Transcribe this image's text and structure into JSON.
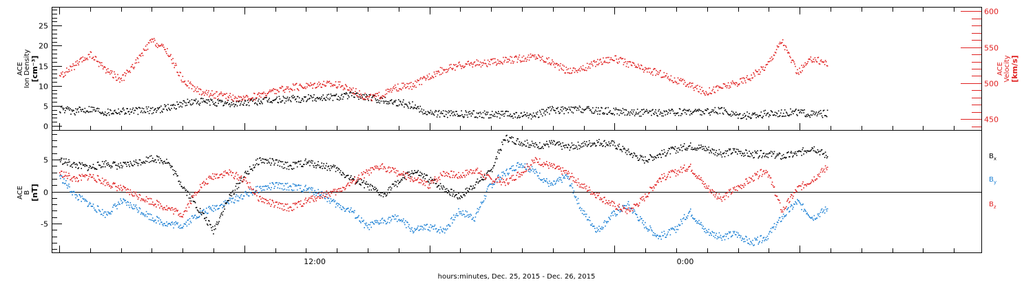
{
  "colors": {
    "black": "#000000",
    "red": "#e02020",
    "blue": "#1a7fd4"
  },
  "chart_data": [
    {
      "type": "scatter",
      "panel": "top",
      "left_axis": {
        "label_lines": [
          "ACE",
          "Ion Density",
          "[cm⁻³]"
        ],
        "ticks": [
          0,
          5,
          10,
          15,
          20,
          25
        ],
        "ylim": [
          -1,
          29.5
        ]
      },
      "right_axis": {
        "label_lines": [
          "ACE",
          "Velocity",
          "[km/s]"
        ],
        "ticks": [
          450,
          500,
          550,
          600
        ],
        "ylim": [
          435,
          605
        ],
        "color": "red"
      },
      "series": [
        {
          "color": "black",
          "axis": "left",
          "points": [
            [
              0,
              4.2
            ],
            [
              1,
              3.8
            ],
            [
              2,
              4.5
            ],
            [
              3,
              3.6
            ],
            [
              4,
              4.0
            ],
            [
              5,
              3.9
            ],
            [
              6,
              4.1
            ],
            [
              7,
              4.6
            ],
            [
              8,
              5.8
            ],
            [
              9,
              6.2
            ],
            [
              10,
              6.0
            ],
            [
              11,
              5.6
            ],
            [
              12,
              5.9
            ],
            [
              13,
              6.3
            ],
            [
              14,
              6.6
            ],
            [
              15,
              6.8
            ],
            [
              16,
              7.0
            ],
            [
              17,
              7.2
            ],
            [
              18,
              7.4
            ],
            [
              19,
              7.8
            ],
            [
              20,
              7.3
            ],
            [
              21,
              6.6
            ],
            [
              22,
              6.0
            ],
            [
              23,
              5.2
            ],
            [
              24,
              3.4
            ],
            [
              25,
              3.2
            ],
            [
              26,
              3.0
            ],
            [
              27,
              3.1
            ],
            [
              28,
              2.9
            ],
            [
              29,
              3.0
            ],
            [
              30,
              2.6
            ],
            [
              31,
              2.9
            ],
            [
              32,
              4.2
            ],
            [
              33,
              4.0
            ],
            [
              34,
              4.3
            ],
            [
              35,
              3.9
            ],
            [
              36,
              3.8
            ],
            [
              37,
              3.6
            ],
            [
              38,
              3.4
            ],
            [
              39,
              3.3
            ],
            [
              40,
              3.5
            ],
            [
              41,
              3.8
            ],
            [
              42,
              3.6
            ],
            [
              43,
              3.9
            ],
            [
              44,
              3.0
            ],
            [
              45,
              2.6
            ],
            [
              46,
              3.2
            ],
            [
              47,
              3.4
            ],
            [
              48,
              3.6
            ],
            [
              49,
              3.0
            ],
            [
              50,
              3.2
            ]
          ]
        },
        {
          "color": "red",
          "axis": "right",
          "points": [
            [
              0,
              510
            ],
            [
              1,
              525
            ],
            [
              2,
              540
            ],
            [
              3,
              520
            ],
            [
              4,
              505
            ],
            [
              5,
              530
            ],
            [
              6,
              560
            ],
            [
              7,
              545
            ],
            [
              8,
              505
            ],
            [
              9,
              490
            ],
            [
              10,
              485
            ],
            [
              11,
              482
            ],
            [
              12,
              478
            ],
            [
              13,
              484
            ],
            [
              14,
              490
            ],
            [
              15,
              494
            ],
            [
              16,
              497
            ],
            [
              17,
              500
            ],
            [
              18,
              499
            ],
            [
              19,
              492
            ],
            [
              20,
              480
            ],
            [
              21,
              484
            ],
            [
              22,
              495
            ],
            [
              23,
              497
            ],
            [
              24,
              510
            ],
            [
              25,
              520
            ],
            [
              26,
              525
            ],
            [
              27,
              528
            ],
            [
              28,
              529
            ],
            [
              29,
              532
            ],
            [
              30,
              535
            ],
            [
              31,
              538
            ],
            [
              32,
              530
            ],
            [
              33,
              518
            ],
            [
              34,
              520
            ],
            [
              35,
              530
            ],
            [
              36,
              535
            ],
            [
              37,
              528
            ],
            [
              38,
              520
            ],
            [
              39,
              515
            ],
            [
              40,
              505
            ],
            [
              41,
              498
            ],
            [
              42,
              488
            ],
            [
              43,
              495
            ],
            [
              44,
              500
            ],
            [
              45,
              510
            ],
            [
              46,
              525
            ],
            [
              47,
              560
            ],
            [
              48,
              515
            ],
            [
              49,
              535
            ],
            [
              50,
              528
            ]
          ]
        }
      ]
    },
    {
      "type": "scatter",
      "panel": "bottom",
      "left_axis": {
        "label_lines": [
          "ACE",
          "B",
          "[nT]"
        ],
        "ticks": [
          -5,
          0,
          5
        ],
        "ylim": [
          -9.5,
          9.5
        ],
        "zero_line": true
      },
      "legend": [
        {
          "base": "B",
          "sub": "x",
          "color": "black"
        },
        {
          "base": "B",
          "sub": "y",
          "color": "blue"
        },
        {
          "base": "B",
          "sub": "z",
          "color": "red"
        }
      ],
      "series": [
        {
          "color": "black",
          "points": [
            [
              0,
              5.0
            ],
            [
              1,
              4.2
            ],
            [
              2,
              3.8
            ],
            [
              3,
              4.5
            ],
            [
              4,
              4.0
            ],
            [
              5,
              4.6
            ],
            [
              6,
              5.3
            ],
            [
              7,
              4.8
            ],
            [
              8,
              1.0
            ],
            [
              9,
              -2.5
            ],
            [
              10,
              -6.0
            ],
            [
              11,
              -1.0
            ],
            [
              12,
              2.5
            ],
            [
              13,
              5.0
            ],
            [
              14,
              4.6
            ],
            [
              15,
              4.0
            ],
            [
              16,
              4.6
            ],
            [
              17,
              4.2
            ],
            [
              18,
              3.6
            ],
            [
              19,
              2.0
            ],
            [
              20,
              1.0
            ],
            [
              21,
              -0.5
            ],
            [
              22,
              1.5
            ],
            [
              23,
              3.2
            ],
            [
              24,
              2.0
            ],
            [
              25,
              0.6
            ],
            [
              26,
              -0.8
            ],
            [
              27,
              1.2
            ],
            [
              28,
              3.0
            ],
            [
              29,
              8.5
            ],
            [
              30,
              7.8
            ],
            [
              31,
              7.2
            ],
            [
              32,
              7.6
            ],
            [
              33,
              7.0
            ],
            [
              34,
              7.4
            ],
            [
              35,
              7.8
            ],
            [
              36,
              7.5
            ],
            [
              37,
              6.2
            ],
            [
              38,
              5.0
            ],
            [
              39,
              5.8
            ],
            [
              40,
              6.6
            ],
            [
              41,
              7.2
            ],
            [
              42,
              6.8
            ],
            [
              43,
              6.0
            ],
            [
              44,
              6.4
            ],
            [
              45,
              5.8
            ],
            [
              46,
              6.0
            ],
            [
              47,
              5.5
            ],
            [
              48,
              6.0
            ],
            [
              49,
              7.0
            ],
            [
              50,
              5.5
            ]
          ]
        },
        {
          "color": "blue",
          "points": [
            [
              0,
              2.5
            ],
            [
              1,
              -0.5
            ],
            [
              2,
              -2.0
            ],
            [
              3,
              -3.5
            ],
            [
              4,
              -1.5
            ],
            [
              5,
              -2.5
            ],
            [
              6,
              -4.0
            ],
            [
              7,
              -5.0
            ],
            [
              8,
              -5.2
            ],
            [
              9,
              -3.5
            ],
            [
              10,
              -2.5
            ],
            [
              11,
              -1.5
            ],
            [
              12,
              -0.5
            ],
            [
              13,
              0.5
            ],
            [
              14,
              1.0
            ],
            [
              15,
              0.8
            ],
            [
              16,
              0.5
            ],
            [
              17,
              -0.2
            ],
            [
              18,
              -2.0
            ],
            [
              19,
              -3.0
            ],
            [
              20,
              -5.5
            ],
            [
              21,
              -4.5
            ],
            [
              22,
              -4.0
            ],
            [
              23,
              -6.0
            ],
            [
              24,
              -5.5
            ],
            [
              25,
              -6.0
            ],
            [
              26,
              -3.0
            ],
            [
              27,
              -4.0
            ],
            [
              28,
              1.0
            ],
            [
              29,
              3.0
            ],
            [
              30,
              4.5
            ],
            [
              31,
              3.0
            ],
            [
              32,
              1.0
            ],
            [
              33,
              2.5
            ],
            [
              34,
              -3.0
            ],
            [
              35,
              -6.0
            ],
            [
              36,
              -3.5
            ],
            [
              37,
              -2.0
            ],
            [
              38,
              -5.0
            ],
            [
              39,
              -7.0
            ],
            [
              40,
              -6.0
            ],
            [
              41,
              -3.0
            ],
            [
              42,
              -6.0
            ],
            [
              43,
              -7.0
            ],
            [
              44,
              -6.5
            ],
            [
              45,
              -8.0
            ],
            [
              46,
              -7.0
            ],
            [
              47,
              -4.0
            ],
            [
              48,
              -1.5
            ],
            [
              49,
              -4.0
            ],
            [
              50,
              -2.5
            ]
          ]
        },
        {
          "color": "red",
          "points": [
            [
              0,
              3.0
            ],
            [
              1,
              2.0
            ],
            [
              2,
              2.5
            ],
            [
              3,
              1.5
            ],
            [
              4,
              0.5
            ],
            [
              5,
              -0.5
            ],
            [
              6,
              -1.5
            ],
            [
              7,
              -2.5
            ],
            [
              8,
              -3.5
            ],
            [
              9,
              0.5
            ],
            [
              10,
              2.5
            ],
            [
              11,
              3.0
            ],
            [
              12,
              2.0
            ],
            [
              13,
              -1.0
            ],
            [
              14,
              -2.0
            ],
            [
              15,
              -2.5
            ],
            [
              16,
              -1.5
            ],
            [
              17,
              -0.5
            ],
            [
              18,
              0.0
            ],
            [
              19,
              1.5
            ],
            [
              20,
              3.0
            ],
            [
              21,
              4.0
            ],
            [
              22,
              3.0
            ],
            [
              23,
              2.0
            ],
            [
              24,
              1.0
            ],
            [
              25,
              3.0
            ],
            [
              26,
              2.5
            ],
            [
              27,
              3.5
            ],
            [
              28,
              2.0
            ],
            [
              29,
              1.5
            ],
            [
              30,
              3.0
            ],
            [
              31,
              5.0
            ],
            [
              32,
              4.0
            ],
            [
              33,
              3.0
            ],
            [
              34,
              1.0
            ],
            [
              35,
              -0.5
            ],
            [
              36,
              -2.0
            ],
            [
              37,
              -3.0
            ],
            [
              38,
              -1.0
            ],
            [
              39,
              2.0
            ],
            [
              40,
              3.0
            ],
            [
              41,
              4.0
            ],
            [
              42,
              1.0
            ],
            [
              43,
              -1.0
            ],
            [
              44,
              0.5
            ],
            [
              45,
              2.0
            ],
            [
              46,
              3.5
            ],
            [
              47,
              -3.0
            ],
            [
              48,
              0.5
            ],
            [
              49,
              2.0
            ],
            [
              50,
              4.0
            ]
          ]
        }
      ]
    }
  ],
  "x_axis": {
    "label": "hours:minutes, Dec. 25, 2015 - Dec. 26, 2015",
    "tick_labels": [
      "12:00",
      "0:00"
    ]
  }
}
